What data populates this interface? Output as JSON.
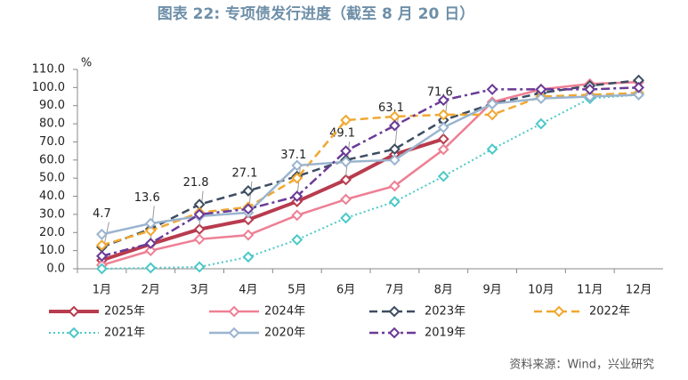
{
  "chart_data": {
    "type": "line",
    "title": "图表 22: 专项债发行进度（截至 8 月 20 日）",
    "y_unit": "%",
    "source": "资料来源：Wind，兴业研究",
    "categories": [
      "1月",
      "2月",
      "3月",
      "4月",
      "5月",
      "6月",
      "7月",
      "8月",
      "9月",
      "10月",
      "11月",
      "12月"
    ],
    "ylim": [
      0,
      110
    ],
    "yticks": [
      {
        "value": 0,
        "label": "0.0"
      },
      {
        "value": 10,
        "label": "10.0"
      },
      {
        "value": 20,
        "label": "20.0"
      },
      {
        "value": 30,
        "label": "30.0"
      },
      {
        "value": 40,
        "label": "40.0"
      },
      {
        "value": 50,
        "label": "50.0"
      },
      {
        "value": 60,
        "label": "60.0"
      },
      {
        "value": 70,
        "label": "70.0"
      },
      {
        "value": 80,
        "label": "80.0"
      },
      {
        "value": 90,
        "label": "90.0"
      },
      {
        "value": 100,
        "label": "100.0"
      },
      {
        "value": 110,
        "label": "110.0"
      }
    ],
    "series": [
      {
        "name": "2025年",
        "color": "#b83b4e",
        "dash": "solid",
        "width": 4,
        "data_labels": true,
        "values": [
          4.7,
          13.6,
          21.8,
          27.1,
          37.1,
          49.1,
          63.1,
          71.6,
          null,
          null,
          null,
          null
        ]
      },
      {
        "name": "2024年",
        "color": "#ee7f94",
        "dash": "solid",
        "width": 2.5,
        "values": [
          2,
          10,
          16.3,
          18.6,
          29.5,
          38.3,
          45.7,
          65.8,
          92,
          99,
          102,
          103
        ]
      },
      {
        "name": "2023年",
        "color": "#3d4d62",
        "dash": "dash",
        "width": 2.5,
        "values": [
          12,
          22,
          35.5,
          43,
          51,
          60,
          66,
          82,
          91,
          97,
          101,
          104
        ]
      },
      {
        "name": "2022年",
        "color": "#f0a830",
        "dash": "dash",
        "width": 2.5,
        "values": [
          13,
          21,
          31,
          34,
          50,
          82,
          84,
          85,
          85,
          95,
          96,
          97
        ]
      },
      {
        "name": "2021年",
        "color": "#4cc8c8",
        "dash": "dot",
        "width": 2,
        "values": [
          0,
          0.5,
          1,
          6.5,
          16,
          28,
          37,
          51,
          66,
          80,
          94,
          96
        ]
      },
      {
        "name": "2020年",
        "color": "#9ab4cf",
        "dash": "solid",
        "width": 2.5,
        "values": [
          19,
          25,
          29,
          31,
          57,
          59,
          60,
          78,
          91,
          94,
          95,
          96
        ]
      },
      {
        "name": "2019年",
        "color": "#6a3a96",
        "dash": "dashdot",
        "width": 2.5,
        "values": [
          7,
          14,
          30,
          33,
          40,
          65,
          79,
          93,
          99,
          99,
          99,
          100
        ]
      }
    ]
  }
}
